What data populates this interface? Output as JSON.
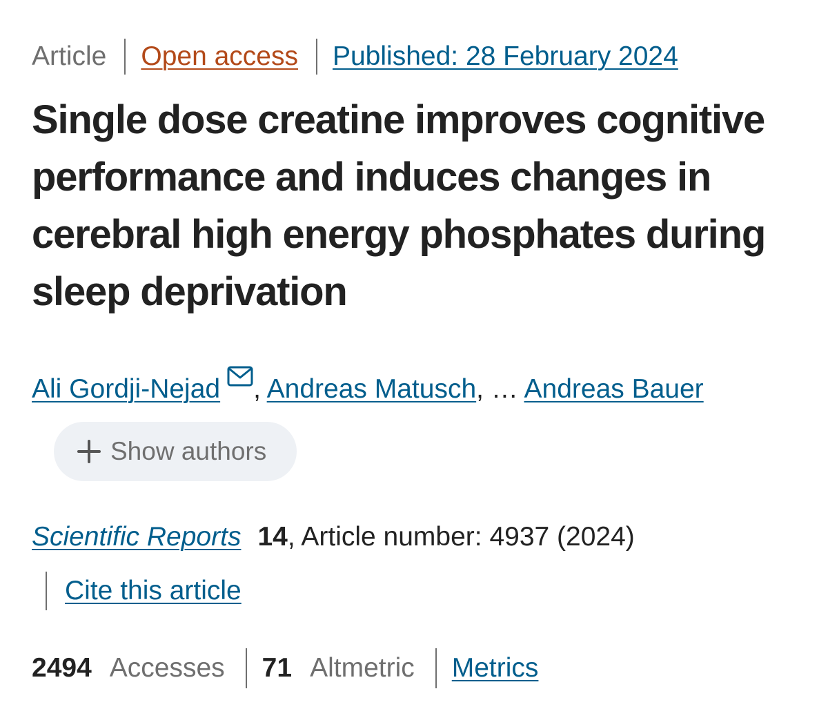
{
  "meta": {
    "type": "Article",
    "access": "Open access",
    "published": "Published: 28 February 2024"
  },
  "title": "Single dose creatine improves cognitive performance and induces changes in cerebral high energy phosphates during sleep deprivation",
  "authors": {
    "first": "Ali Gordji-Nejad",
    "second": "Andreas Matusch",
    "ellipsis": "…",
    "last": "Andreas Bauer",
    "show_authors_label": "Show authors",
    "mail_icon": "envelope-icon",
    "plus_icon": "plus-icon"
  },
  "journal": {
    "name": "Scientific Reports",
    "volume": "14",
    "article_number_text": ", Article number: 4937 (2024)",
    "cite_label": "Cite this article"
  },
  "metrics": {
    "accesses_value": "2494",
    "accesses_label": "Accesses",
    "altmetric_value": "71",
    "altmetric_label": "Altmetric",
    "metrics_link": "Metrics"
  },
  "colors": {
    "link": "#025e8d",
    "open_access": "#b34a1a",
    "muted": "#6f6f6f",
    "text": "#222222",
    "pill_bg": "#eef1f5"
  }
}
